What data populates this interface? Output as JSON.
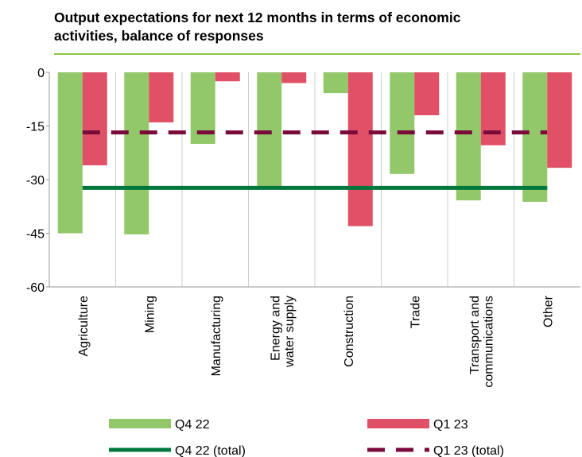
{
  "chart_data": {
    "type": "bar",
    "title": [
      "Output expectations for next 12 months in terms of economic",
      "activities, balance of responses"
    ],
    "categories": [
      "Agriculture",
      "Mining",
      "Manufacturing",
      "Energy and\nwater supply",
      "Construction",
      "Trade",
      "Transport and\ncommunications",
      "Other"
    ],
    "series": [
      {
        "name": "Q4 22",
        "color": "#92c86a",
        "values": [
          -45,
          -45.3,
          -20,
          -32,
          -5.8,
          -28.4,
          -35.8,
          -36.2
        ]
      },
      {
        "name": "Q1 23",
        "color": "#e05066",
        "values": [
          -26,
          -14,
          -2.5,
          -3,
          -43,
          -12,
          -20.4,
          -26.7
        ]
      }
    ],
    "totals": [
      {
        "name": "Q4 22 (total)",
        "color": "#00783c",
        "dashed": false,
        "value": -32.3
      },
      {
        "name": "Q1 23 (total)",
        "color": "#7a0a3a",
        "dashed": true,
        "value": -16.8
      }
    ],
    "ylim": [
      -60,
      0
    ],
    "yticks": [
      0,
      -15,
      -30,
      -45,
      -60
    ]
  }
}
